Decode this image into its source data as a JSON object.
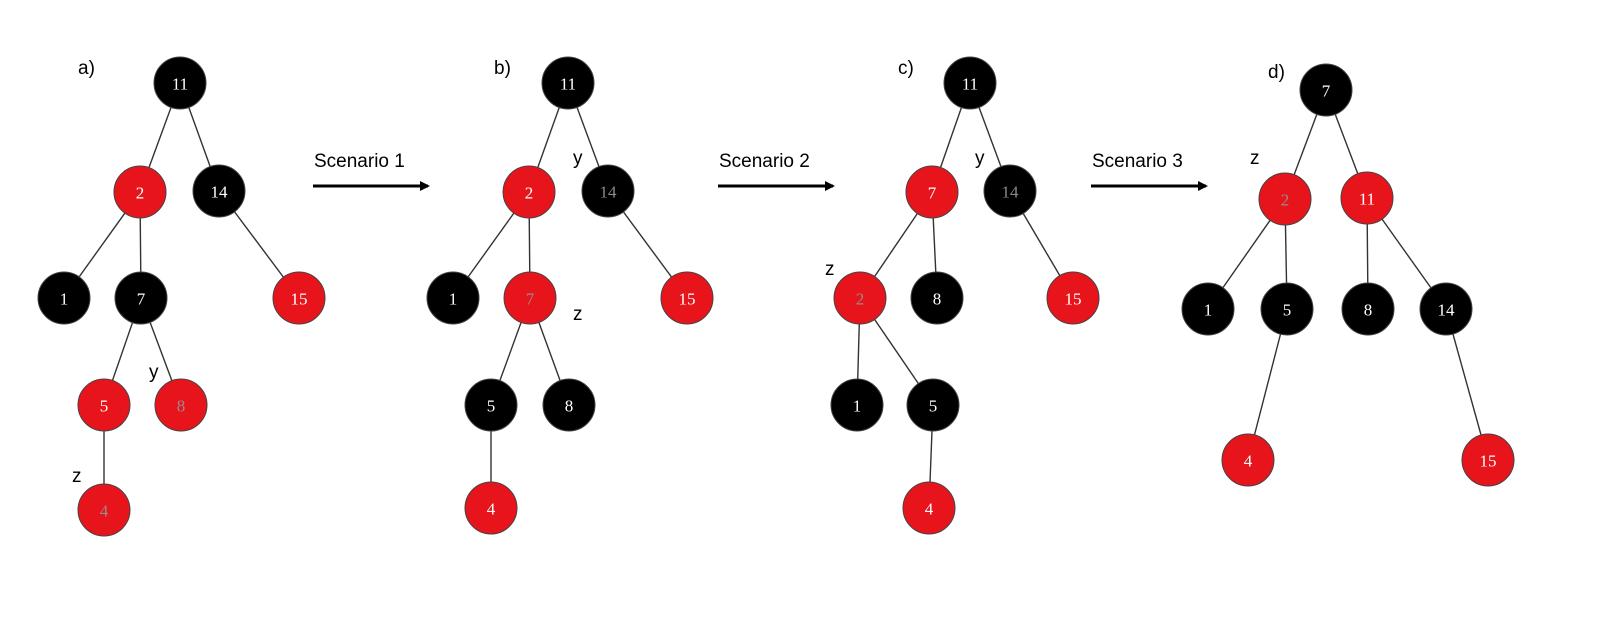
{
  "colors": {
    "red": "#e8141c",
    "black": "#000000",
    "text_on_red": "#ffffff",
    "text_on_red_dim": "#9a8a8a",
    "text_on_black": "#ffffff",
    "text_on_black_dim": "#8a8a8a"
  },
  "panels": [
    {
      "label": "a)",
      "nodes": [
        {
          "id": "11",
          "value": "11",
          "color": "black"
        },
        {
          "id": "2",
          "value": "2",
          "color": "red"
        },
        {
          "id": "14",
          "value": "14",
          "color": "black"
        },
        {
          "id": "1",
          "value": "1",
          "color": "black"
        },
        {
          "id": "7",
          "value": "7",
          "color": "black"
        },
        {
          "id": "15",
          "value": "15",
          "color": "red"
        },
        {
          "id": "5",
          "value": "5",
          "color": "red"
        },
        {
          "id": "8",
          "value": "8",
          "color": "red",
          "dim": true
        },
        {
          "id": "4",
          "value": "4",
          "color": "red",
          "dim": true
        }
      ],
      "markers": [
        {
          "text": "y",
          "near": "8"
        },
        {
          "text": "z",
          "near": "4"
        }
      ]
    },
    {
      "label": "b)",
      "nodes": [
        {
          "id": "11",
          "value": "11",
          "color": "black"
        },
        {
          "id": "2",
          "value": "2",
          "color": "red"
        },
        {
          "id": "14",
          "value": "14",
          "color": "black",
          "dim": true
        },
        {
          "id": "1",
          "value": "1",
          "color": "black"
        },
        {
          "id": "7",
          "value": "7",
          "color": "red",
          "dim": true
        },
        {
          "id": "15",
          "value": "15",
          "color": "red"
        },
        {
          "id": "5",
          "value": "5",
          "color": "black"
        },
        {
          "id": "8",
          "value": "8",
          "color": "black"
        },
        {
          "id": "4",
          "value": "4",
          "color": "red"
        }
      ],
      "markers": [
        {
          "text": "y",
          "near": "14"
        },
        {
          "text": "z",
          "near": "7"
        }
      ]
    },
    {
      "label": "c)",
      "nodes": [
        {
          "id": "11",
          "value": "11",
          "color": "black"
        },
        {
          "id": "7",
          "value": "7",
          "color": "red"
        },
        {
          "id": "14",
          "value": "14",
          "color": "black",
          "dim": true
        },
        {
          "id": "2",
          "value": "2",
          "color": "red",
          "dim": true
        },
        {
          "id": "8",
          "value": "8",
          "color": "black"
        },
        {
          "id": "15",
          "value": "15",
          "color": "red"
        },
        {
          "id": "1",
          "value": "1",
          "color": "black"
        },
        {
          "id": "5",
          "value": "5",
          "color": "black"
        },
        {
          "id": "4",
          "value": "4",
          "color": "red"
        }
      ],
      "markers": [
        {
          "text": "y",
          "near": "14"
        },
        {
          "text": "z",
          "near": "2"
        }
      ]
    },
    {
      "label": "d)",
      "nodes": [
        {
          "id": "7",
          "value": "7",
          "color": "black"
        },
        {
          "id": "2",
          "value": "2",
          "color": "red",
          "dim": true
        },
        {
          "id": "11",
          "value": "11",
          "color": "red"
        },
        {
          "id": "1",
          "value": "1",
          "color": "black"
        },
        {
          "id": "5",
          "value": "5",
          "color": "black"
        },
        {
          "id": "8",
          "value": "8",
          "color": "black"
        },
        {
          "id": "14",
          "value": "14",
          "color": "black"
        },
        {
          "id": "4",
          "value": "4",
          "color": "red"
        },
        {
          "id": "15",
          "value": "15",
          "color": "red"
        }
      ],
      "markers": [
        {
          "text": "z",
          "near": "2"
        }
      ]
    }
  ],
  "arrows": [
    {
      "label": "Scenario 1"
    },
    {
      "label": "Scenario 2"
    },
    {
      "label": "Scenario 3"
    }
  ]
}
